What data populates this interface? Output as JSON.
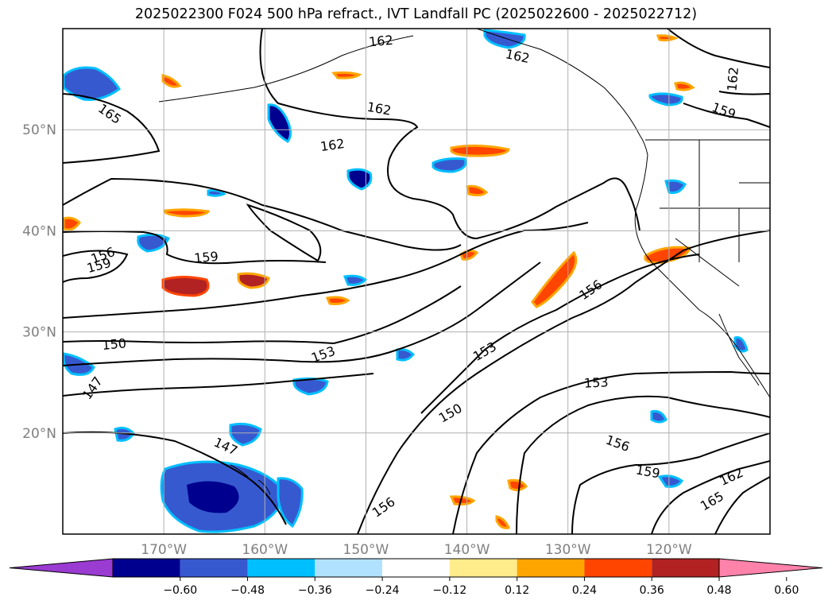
{
  "title": "2025022300 F024 500 hPa refract., IVT Landfall PC (2025022600 - 2025022712)",
  "map": {
    "lon_range": [
      -180,
      -110
    ],
    "lat_range": [
      10,
      60
    ],
    "lat_labels": [
      "50°N",
      "40°N",
      "30°N",
      "20°N"
    ],
    "lon_labels": [
      "170°W",
      "160°W",
      "150°W",
      "140°W",
      "130°W",
      "120°W"
    ],
    "gridlines": true,
    "contour_labels": [
      {
        "text": "162",
        "lon": -148.5,
        "lat": 58.7,
        "rot": -5
      },
      {
        "text": "162",
        "lon": -148.7,
        "lat": 52,
        "rot": 10
      },
      {
        "text": "162",
        "lon": -135,
        "lat": 57.2,
        "rot": 12
      },
      {
        "text": "162",
        "lon": -113.6,
        "lat": 55.0,
        "rot": -85
      },
      {
        "text": "159",
        "lon": -114.6,
        "lat": 51.8,
        "rot": 20
      },
      {
        "text": "162",
        "lon": -153.3,
        "lat": 48.4,
        "rot": -8
      },
      {
        "text": "165",
        "lon": -175.4,
        "lat": 51.5,
        "rot": 35
      },
      {
        "text": "156",
        "lon": -176,
        "lat": 37.5,
        "rot": -20
      },
      {
        "text": "159",
        "lon": -176.4,
        "lat": 36.5,
        "rot": -15
      },
      {
        "text": "159",
        "lon": -165.8,
        "lat": 37.3,
        "rot": -5
      },
      {
        "text": "150",
        "lon": -174.9,
        "lat": 28.7,
        "rot": -5
      },
      {
        "text": "147",
        "lon": -177,
        "lat": 24.4,
        "rot": -55
      },
      {
        "text": "153",
        "lon": -154.2,
        "lat": 27.7,
        "rot": -20
      },
      {
        "text": "153",
        "lon": -138.2,
        "lat": 28.0,
        "rot": -30
      },
      {
        "text": "156",
        "lon": -127.7,
        "lat": 34.1,
        "rot": -35
      },
      {
        "text": "150",
        "lon": -141.6,
        "lat": 21.9,
        "rot": -30
      },
      {
        "text": "153",
        "lon": -127.2,
        "lat": 24.9,
        "rot": -3
      },
      {
        "text": "156",
        "lon": -125.1,
        "lat": 18.9,
        "rot": 20
      },
      {
        "text": "147",
        "lon": -163.9,
        "lat": 18.6,
        "rot": 25
      },
      {
        "text": "159",
        "lon": -122.1,
        "lat": 16.1,
        "rot": 10
      },
      {
        "text": "162",
        "lon": -113.8,
        "lat": 15.6,
        "rot": -25
      },
      {
        "text": "165",
        "lon": -115.7,
        "lat": 13.2,
        "rot": -30
      },
      {
        "text": "156",
        "lon": -148.2,
        "lat": 12.6,
        "rot": -35
      }
    ]
  },
  "colorbar": {
    "ticks": [
      "−0.60",
      "−0.48",
      "−0.36",
      "−0.24",
      "−0.12",
      "0.12",
      "0.24",
      "0.36",
      "0.48",
      "0.60"
    ],
    "colors": [
      "#9a3bd1",
      "#00008f",
      "#3759d0",
      "#00bfff",
      "#b0e2ff",
      "#ffffff",
      "#ffec8b",
      "#ffa500",
      "#ff4500",
      "#b22222",
      "#ff82ab"
    ],
    "extend": "both"
  }
}
